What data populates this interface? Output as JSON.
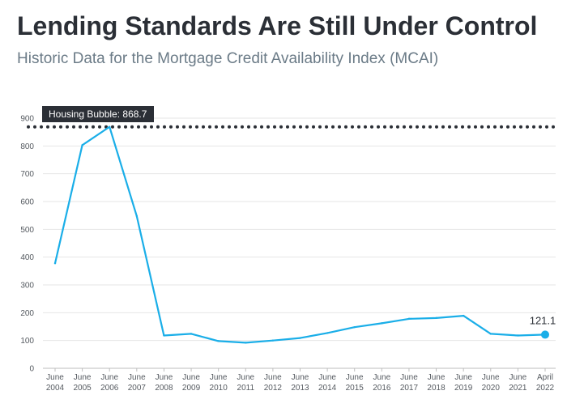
{
  "header": {
    "title": "Lending Standards Are Still Under Control",
    "subtitle": "Historic Data for the Mortgage Credit Availability Index (MCAI)"
  },
  "colors": {
    "line": "#1aaee8",
    "reference": "#2b2f36",
    "callout_bg": "#2b2f36",
    "grid": "#e6e6e6"
  },
  "chart_data": {
    "type": "line",
    "title": "Lending Standards Are Still Under Control",
    "subtitle": "Historic Data for the Mortgage Credit Availability Index (MCAI)",
    "xlabel": "",
    "ylabel": "",
    "ylim": [
      0,
      900
    ],
    "yticks": [
      0,
      100,
      200,
      300,
      400,
      500,
      600,
      700,
      800,
      900
    ],
    "grid": "horizontal",
    "categories": [
      [
        "June",
        "2004"
      ],
      [
        "June",
        "2005"
      ],
      [
        "June",
        "2006"
      ],
      [
        "June",
        "2007"
      ],
      [
        "June",
        "2008"
      ],
      [
        "June",
        "2009"
      ],
      [
        "June",
        "2010"
      ],
      [
        "June",
        "2011"
      ],
      [
        "June",
        "2012"
      ],
      [
        "June",
        "2013"
      ],
      [
        "June",
        "2014"
      ],
      [
        "June",
        "2015"
      ],
      [
        "June",
        "2016"
      ],
      [
        "June",
        "2017"
      ],
      [
        "June",
        "2018"
      ],
      [
        "June",
        "2019"
      ],
      [
        "June",
        "2020"
      ],
      [
        "June",
        "2021"
      ],
      [
        "April",
        "2022"
      ]
    ],
    "series": [
      {
        "values": [
          378,
          803,
          868.7,
          548,
          118,
          124,
          98,
          92,
          100,
          109,
          127,
          148,
          162,
          178,
          181,
          189,
          124,
          118,
          121.1
        ]
      }
    ],
    "reference_line": {
      "value": 868.7,
      "style": "dotted",
      "label": "Housing Bubble: 868.7"
    },
    "last_point_label": "121.1"
  }
}
